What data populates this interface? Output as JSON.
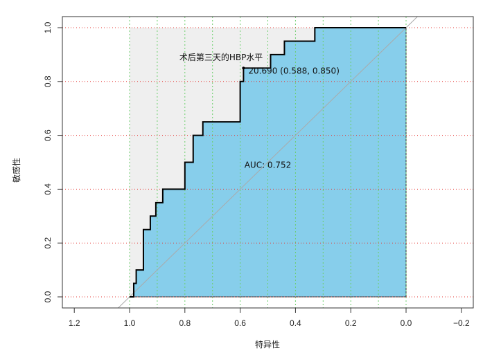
{
  "chart_data": {
    "type": "line",
    "title": "术后第三天的HBP水平",
    "xlabel": "特异性",
    "ylabel": "敏感性",
    "x_reversed": true,
    "xlim": [
      1.2,
      -0.2
    ],
    "ylim": [
      0.0,
      1.0
    ],
    "x_ticks": [
      1.2,
      1.0,
      0.8,
      0.6,
      0.4,
      0.2,
      0.0,
      -0.2
    ],
    "x_tick_labels": [
      "1.2",
      "1.0",
      "0.8",
      "0.6",
      "0.4",
      "0.2",
      "0.0",
      "−0.2"
    ],
    "y_ticks": [
      0.0,
      0.2,
      0.4,
      0.6,
      0.8,
      1.0
    ],
    "y_tick_labels": [
      "0.0",
      "0.2",
      "0.4",
      "0.6",
      "0.8",
      "1.0"
    ],
    "grid": true,
    "grid_x_values": [
      1.0,
      0.9,
      0.8,
      0.7,
      0.6,
      0.5,
      0.4,
      0.3,
      0.2,
      0.1,
      0.0
    ],
    "grid_y_values": [
      0.0,
      0.2,
      0.4,
      0.6,
      0.8,
      1.0
    ],
    "series": [
      {
        "specificity": [
          1.0,
          0.985,
          0.985,
          0.976,
          0.976,
          0.95,
          0.95,
          0.925,
          0.925,
          0.905,
          0.905,
          0.88,
          0.88,
          0.8,
          0.8,
          0.77,
          0.77,
          0.735,
          0.735,
          0.6,
          0.6,
          0.588,
          0.588,
          0.49,
          0.49,
          0.44,
          0.44,
          0.33,
          0.33,
          0.0
        ],
        "sensitivity": [
          0.0,
          0.0,
          0.05,
          0.05,
          0.1,
          0.1,
          0.25,
          0.25,
          0.3,
          0.3,
          0.35,
          0.35,
          0.4,
          0.4,
          0.5,
          0.5,
          0.6,
          0.6,
          0.65,
          0.65,
          0.8,
          0.8,
          0.85,
          0.85,
          0.9,
          0.9,
          0.95,
          0.95,
          1.0,
          1.0
        ]
      }
    ],
    "reference_line": {
      "from": [
        1.0,
        0.0
      ],
      "to": [
        0.0,
        1.0
      ]
    },
    "best_threshold": {
      "label": "20.690 (0.588, 0.850)",
      "specificity": 0.588,
      "sensitivity": 0.85
    },
    "auc_label": "AUC: 0.752",
    "auc_label_position": {
      "specificity": 0.5,
      "sensitivity": 0.48
    },
    "title_position": {
      "specificity": 0.82,
      "sensitivity": 0.89
    },
    "colors": {
      "auc_fill": "#87CEEB",
      "upper_fill": "#EFEFEF",
      "roc_line": "#000000",
      "grid_x": "#6CCF6C",
      "grid_y": "#E53935",
      "reference": "#AAAAAA"
    }
  }
}
